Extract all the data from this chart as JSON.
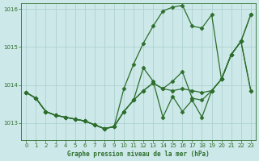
{
  "title": "Graphe pression niveau de la mer (hPa)",
  "bg_color": "#cce8e8",
  "grid_color": "#aacece",
  "line_color": "#2d6e2d",
  "marker": "D",
  "markersize": 2.5,
  "linewidth": 0.9,
  "xlim": [
    -0.5,
    23.5
  ],
  "ylim": [
    1012.55,
    1016.15
  ],
  "yticks": [
    1013,
    1014,
    1015,
    1016
  ],
  "xticks": [
    0,
    1,
    2,
    3,
    4,
    5,
    6,
    7,
    8,
    9,
    10,
    11,
    12,
    13,
    14,
    15,
    16,
    17,
    18,
    19,
    20,
    21,
    22,
    23
  ],
  "series": [
    [
      1013.8,
      1013.65,
      1013.3,
      1013.2,
      1013.15,
      1013.1,
      1013.05,
      1012.95,
      1012.85,
      1012.9,
      1013.3,
      1013.6,
      1013.85,
      1014.05,
      1013.9,
      1013.85,
      1013.9,
      1013.85,
      1013.8,
      1013.85,
      1014.15,
      1014.8,
      1015.15,
      1013.85
    ],
    [
      1013.8,
      1013.65,
      1013.3,
      1013.2,
      1013.15,
      1013.1,
      1013.05,
      1012.95,
      1012.85,
      1012.9,
      1013.3,
      1013.6,
      1014.45,
      1014.1,
      1013.15,
      1013.7,
      1013.3,
      1013.6,
      1013.15,
      1013.85,
      1014.15,
      1014.8,
      1015.15,
      1015.85
    ],
    [
      1013.8,
      1013.65,
      1013.3,
      1013.2,
      1013.15,
      1013.1,
      1013.05,
      1012.95,
      1012.85,
      1012.9,
      1013.3,
      1013.6,
      1013.85,
      1014.05,
      1013.9,
      1014.1,
      1014.35,
      1013.65,
      1013.6,
      1013.85,
      1014.15,
      1014.8,
      1015.15,
      1013.85
    ],
    [
      1013.8,
      1013.65,
      1013.3,
      1013.2,
      1013.15,
      1013.1,
      1013.05,
      1012.95,
      1012.85,
      1012.9,
      1013.9,
      1014.55,
      1015.1,
      1015.55,
      1015.95,
      1016.05,
      1016.1,
      1015.55,
      1015.5,
      1015.85,
      1014.15,
      1014.8,
      1015.15,
      1015.85
    ]
  ]
}
